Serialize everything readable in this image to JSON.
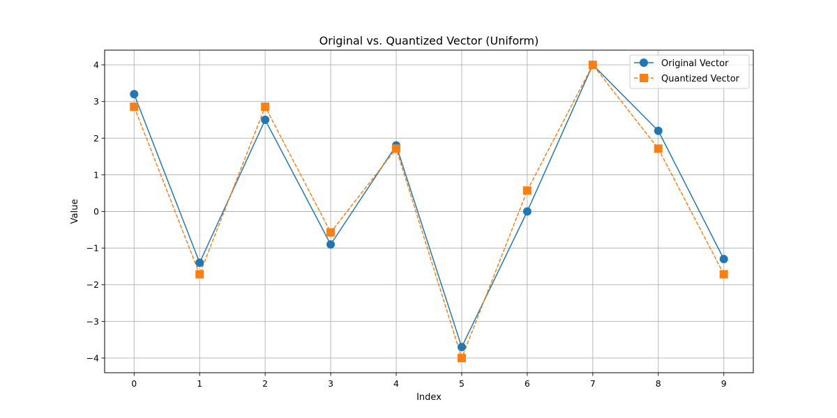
{
  "chart_data": {
    "type": "line",
    "title": "Original vs. Quantized Vector (Uniform)",
    "xlabel": "Index",
    "ylabel": "Value",
    "x": [
      0,
      1,
      2,
      3,
      4,
      5,
      6,
      7,
      8,
      9
    ],
    "xlim": [
      -0.45,
      9.45
    ],
    "ylim": [
      -4.4,
      4.4
    ],
    "xticks": [
      0,
      1,
      2,
      3,
      4,
      5,
      6,
      7,
      8,
      9
    ],
    "yticks": [
      -4,
      -3,
      -2,
      -1,
      0,
      1,
      2,
      3,
      4
    ],
    "xtick_labels": [
      "0",
      "1",
      "2",
      "3",
      "4",
      "5",
      "6",
      "7",
      "8",
      "9"
    ],
    "ytick_labels": [
      "−4",
      "−3",
      "−2",
      "−1",
      "0",
      "1",
      "2",
      "3",
      "4"
    ],
    "grid": true,
    "legend_position": "top-right",
    "series": [
      {
        "name": "Original Vector",
        "values": [
          3.2,
          -1.4,
          2.5,
          -0.9,
          1.8,
          -3.7,
          0.0,
          4.0,
          2.2,
          -1.3
        ],
        "color": "#1f77b4",
        "marker": "circle",
        "line_style": "solid"
      },
      {
        "name": "Quantized Vector",
        "values": [
          2.857,
          -1.714,
          2.857,
          -0.571,
          1.714,
          -4.0,
          0.571,
          4.0,
          1.714,
          -1.714
        ],
        "color": "#ff7f0e",
        "marker": "square",
        "line_style": "dashed"
      }
    ]
  }
}
